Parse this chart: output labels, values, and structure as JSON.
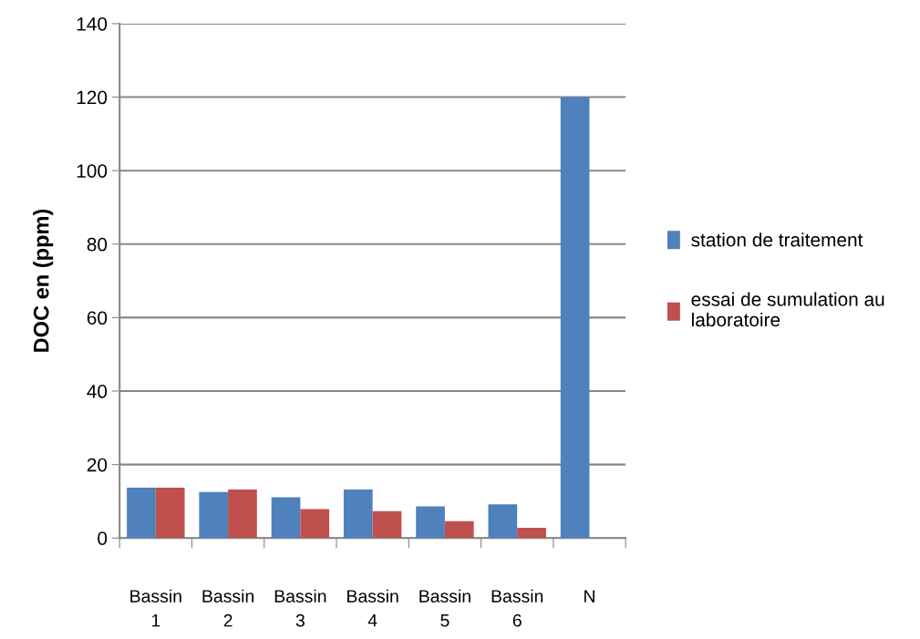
{
  "chart_data": {
    "type": "bar",
    "ylabel": "DOC en (ppm)",
    "categories": [
      "Bassin\n1",
      "Bassin\n2",
      "Bassin\n3",
      "Bassin\n4",
      "Bassin\n5",
      "Bassin\n6",
      "N"
    ],
    "series": [
      {
        "name": "station de traitement",
        "color": "#4f81bd",
        "values": [
          13.7,
          12.5,
          11.1,
          13.2,
          8.6,
          9.2,
          120
        ]
      },
      {
        "name": "essai de sumulation au\nlaboratoire",
        "color": "#c0504d",
        "values": [
          13.7,
          13.2,
          7.9,
          7.3,
          4.6,
          2.8,
          null
        ]
      }
    ],
    "ylim": [
      0,
      140
    ],
    "yticks": [
      0,
      20,
      40,
      60,
      80,
      100,
      120,
      140
    ],
    "grid": "y",
    "legend": "right"
  }
}
